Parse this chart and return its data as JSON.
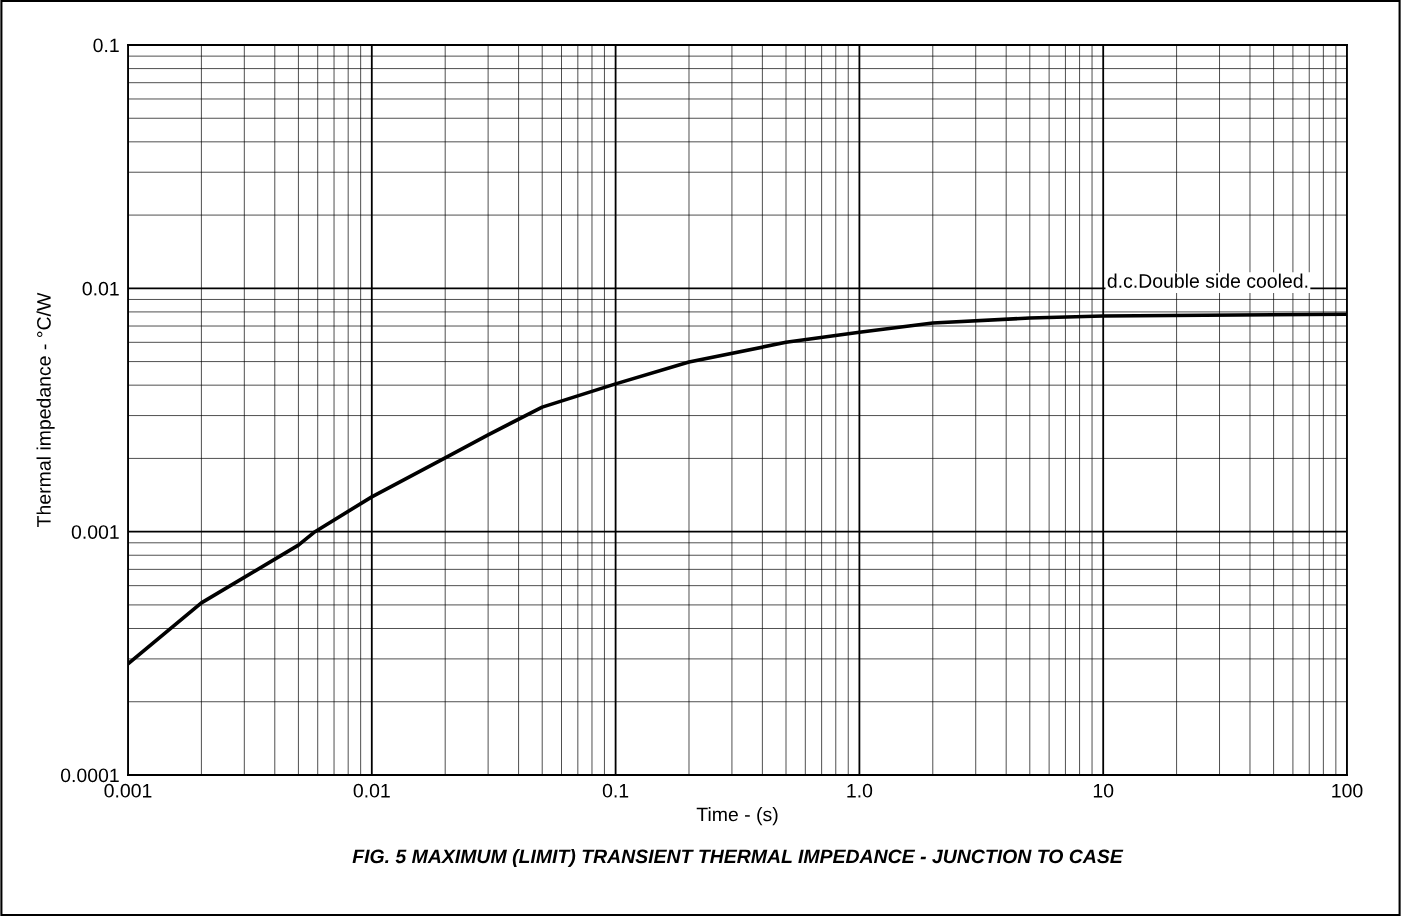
{
  "chart_data": {
    "type": "line",
    "title": "FIG. 5 MAXIMUM (LIMIT) TRANSIENT THERMAL IMPEDANCE - JUNCTION TO CASE",
    "xlabel": "Time - (s)",
    "ylabel": "Thermal impedance - °C/W",
    "x": [
      0.001,
      0.002,
      0.005,
      0.00585,
      0.01,
      0.02,
      0.03,
      0.05,
      0.1,
      0.2,
      0.5,
      1,
      2,
      5,
      10,
      100
    ],
    "series": [
      {
        "color": "#000000",
        "values": [
          0.000286,
          0.00051,
          0.00088,
          0.001,
          0.00139,
          0.00201,
          0.0025,
          0.00325,
          0.00405,
          0.00498,
          0.006,
          0.0066,
          0.0072,
          0.00755,
          0.0077,
          0.00783
        ]
      }
    ],
    "log": "xy",
    "xlim": [
      0.001,
      100
    ],
    "ylim": [
      0.0001,
      0.1
    ],
    "xticks": [
      0.001,
      0.01,
      0.1,
      {
        "value": 1,
        "label": "1.0"
      },
      10,
      100
    ],
    "yticks": [
      0.0001,
      0.001,
      0.01,
      0.1
    ],
    "grid": true,
    "marker": "none",
    "line_style": "solid",
    "annotations": [
      "d.c.Double side cooled."
    ]
  }
}
